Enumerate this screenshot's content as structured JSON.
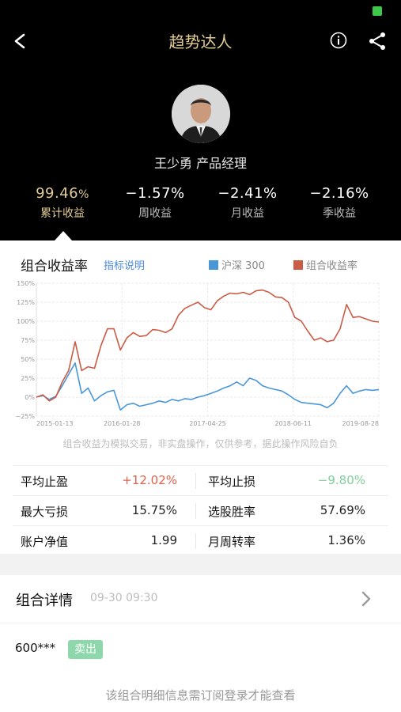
{
  "header": {
    "title": "趋势达人",
    "manager": "王少勇 产品经理"
  },
  "stats": [
    {
      "value": "99.46",
      "unit": "%",
      "label": "累计收益"
    },
    {
      "value": "−1.57%",
      "label": "周收益"
    },
    {
      "value": "−2.41%",
      "label": "月收益"
    },
    {
      "value": "−2.16%",
      "label": "季收益"
    }
  ],
  "chart_section": {
    "title": "组合收益率",
    "link": "指标说明",
    "legend_index": "沪深 300",
    "legend_portfolio": "组合收益率",
    "disclaimer": "组合收益为模拟交易，非实盘操作，仅供参考，据此操作风险自负"
  },
  "colors": {
    "index": "#4a97d8",
    "portfolio": "#cc5b45",
    "gold": "#e3cc95",
    "positive": "#e0604a",
    "negative": "#7fcf9b"
  },
  "chart_data": {
    "type": "line",
    "yticks": [
      "150%",
      "125%",
      "100%",
      "75%",
      "50%",
      "25%",
      "0%",
      "−25%"
    ],
    "ylim": [
      -25,
      150
    ],
    "xticks": [
      "2015-01-13",
      "2016-01-28",
      "2017-04-25",
      "2018-06-11",
      "2019-08-28"
    ],
    "series": [
      {
        "name": "沪深 300",
        "values": [
          0,
          2,
          -3,
          1,
          15,
          30,
          45,
          5,
          12,
          -5,
          2,
          7,
          9,
          -17,
          -10,
          -8,
          -12,
          -10,
          -8,
          -5,
          -7,
          -3,
          -5,
          -2,
          -3,
          0,
          2,
          5,
          8,
          12,
          15,
          20,
          15,
          25,
          22,
          15,
          12,
          10,
          8,
          3,
          -3,
          -7,
          -8,
          -9,
          -10,
          -14,
          -8,
          5,
          15,
          5,
          8,
          10,
          9,
          10
        ]
      },
      {
        "name": "组合收益率",
        "values": [
          0,
          3,
          -5,
          0,
          20,
          35,
          73,
          35,
          40,
          38,
          68,
          90,
          90,
          62,
          78,
          85,
          80,
          81,
          89,
          88,
          85,
          90,
          108,
          117,
          121,
          125,
          118,
          115,
          127,
          133,
          137,
          136,
          138,
          135,
          140,
          141,
          138,
          132,
          131,
          125,
          105,
          100,
          87,
          75,
          78,
          73,
          75,
          90,
          122,
          105,
          106,
          103,
          100,
          99
        ]
      }
    ]
  },
  "metrics": [
    {
      "k1": "平均止盈",
      "v1": "+12.02%",
      "k2": "平均止损",
      "v2": "−9.80%"
    },
    {
      "k1": "最大亏损",
      "v1": "15.75%",
      "k2": "选股胜率",
      "v2": "57.69%"
    },
    {
      "k1": "账户净值",
      "v1": "1.99",
      "k2": "月周转率",
      "v2": "1.36%"
    }
  ],
  "detail": {
    "title": "组合详情",
    "timestamp": "09-30 09:30",
    "stock_code": "600***",
    "badge": "卖出",
    "login_hint": "该组合明细信息需订阅登录才能查看"
  }
}
